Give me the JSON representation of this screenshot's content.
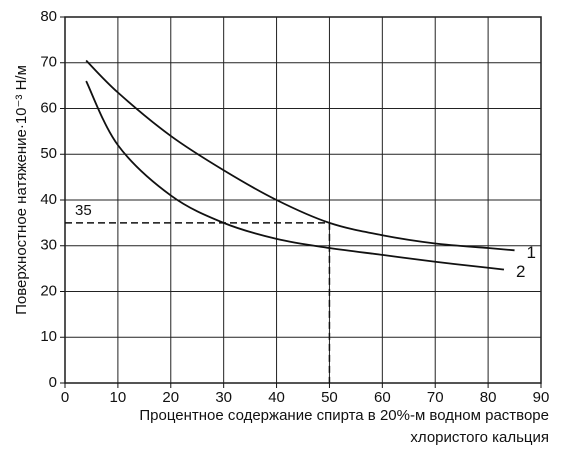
{
  "chart_data": {
    "type": "line",
    "y_label": "Поверхностное  натяжение·10⁻³ Н/м",
    "x_label_lines": [
      "Процентное содержание спирта в 20%-м водном растворе",
      "хлористого кальция"
    ],
    "series": [
      {
        "name": "1",
        "color": "#111111",
        "x": [
          4,
          10,
          20,
          30,
          40,
          50,
          60,
          70,
          80,
          85
        ],
        "values": [
          70.5,
          63.5,
          54,
          46.5,
          40,
          35,
          32.3,
          30.5,
          29.5,
          29
        ]
      },
      {
        "name": "2",
        "color": "#111111",
        "x": [
          4,
          10,
          20,
          30,
          40,
          50,
          60,
          70,
          80,
          83
        ],
        "values": [
          66,
          52,
          41,
          35,
          31.5,
          29.5,
          28,
          26.5,
          25.2,
          24.8
        ]
      }
    ],
    "reference": {
      "x": 50,
      "y": 35
    },
    "xlim": [
      0,
      90
    ],
    "xticks": [
      0,
      10,
      20,
      30,
      40,
      50,
      60,
      70,
      80,
      90
    ],
    "ylim": [
      0,
      80
    ],
    "yticks": [
      0,
      10,
      20,
      30,
      40,
      50,
      60,
      70,
      80
    ],
    "grid": true
  }
}
